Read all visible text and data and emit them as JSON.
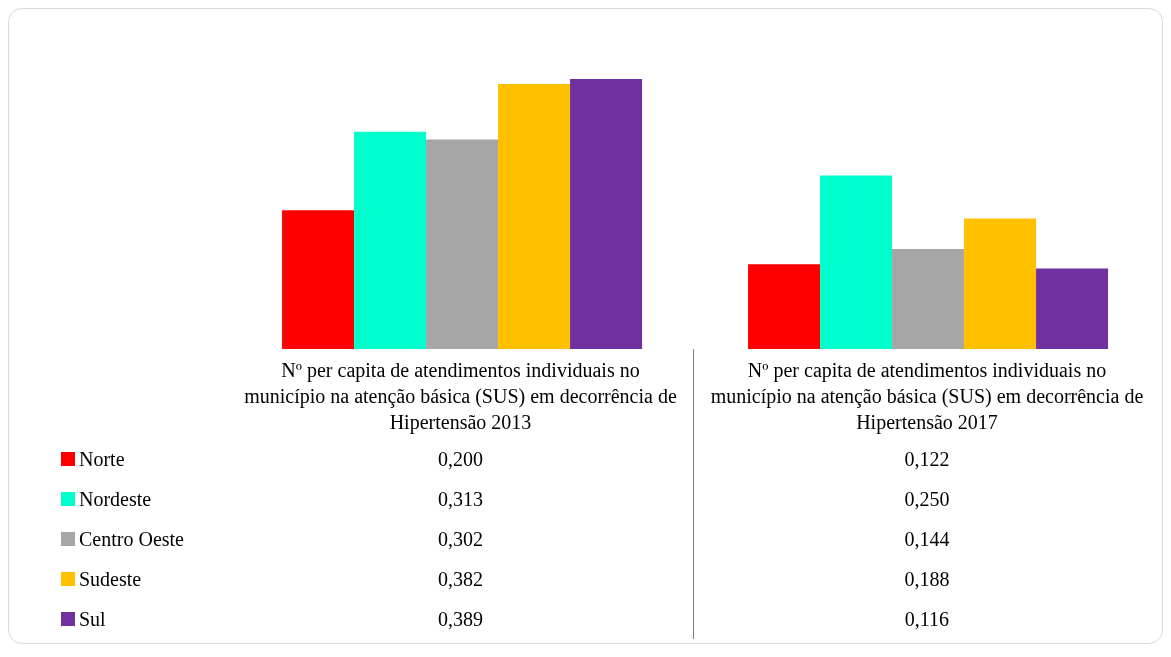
{
  "chart_data": {
    "type": "bar",
    "categories": [
      "Nº per capita de atendimentos individuais no município na atenção básica (SUS) em decorrência de Hipertensão 2013",
      "Nº per capita de atendimentos individuais no município na atenção básica (SUS) em decorrência de Hipertensão 2017"
    ],
    "series": [
      {
        "name": "Norte",
        "color": "#ff0000",
        "values": [
          0.2,
          0.122
        ],
        "value_labels": [
          "0,200",
          "0,122"
        ]
      },
      {
        "name": "Nordeste",
        "color": "#00ffcc",
        "values": [
          0.313,
          0.25
        ],
        "value_labels": [
          "0,313",
          "0,250"
        ]
      },
      {
        "name": "Centro Oeste",
        "color": "#a6a6a6",
        "values": [
          0.302,
          0.144
        ],
        "value_labels": [
          "0,302",
          "0,144"
        ]
      },
      {
        "name": "Sudeste",
        "color": "#ffc000",
        "values": [
          0.382,
          0.188
        ],
        "value_labels": [
          "0,382",
          "0,188"
        ]
      },
      {
        "name": "Sul",
        "color": "#7030a0",
        "values": [
          0.389,
          0.116
        ],
        "value_labels": [
          "0,389",
          "0,116"
        ]
      }
    ],
    "legend": "bottom left",
    "grid": false
  }
}
